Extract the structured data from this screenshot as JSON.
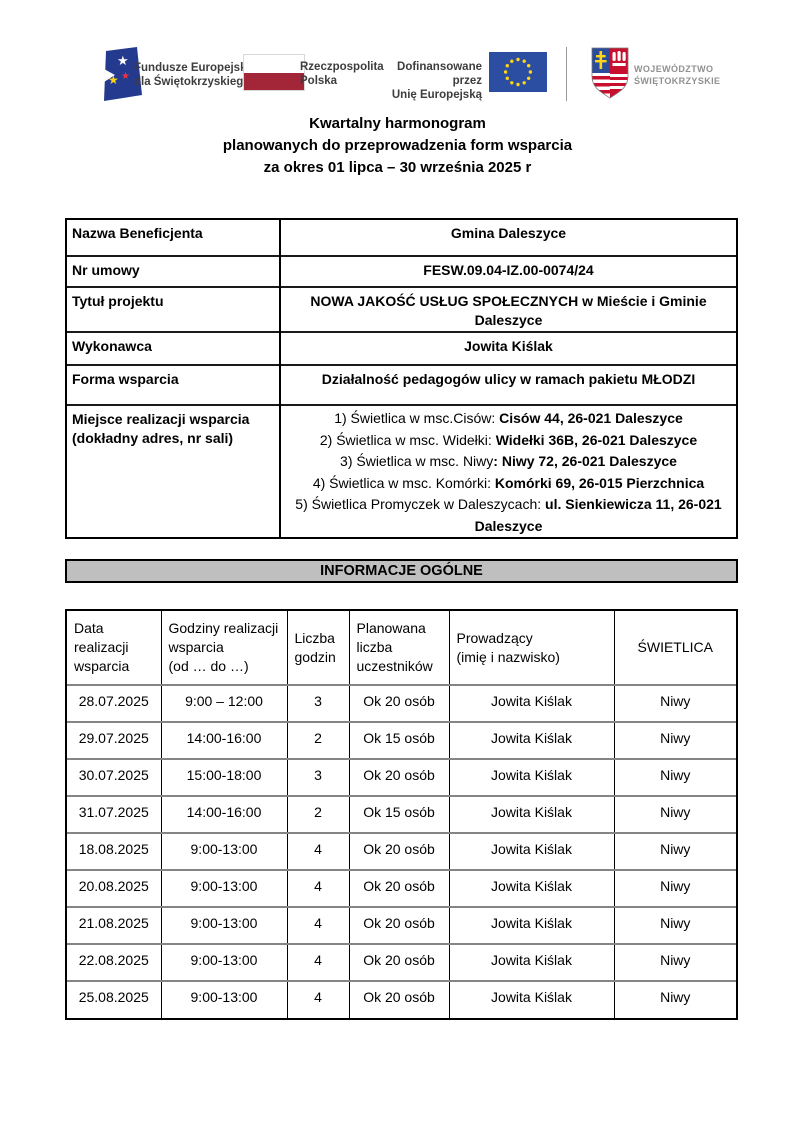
{
  "header": {
    "fe_logo": {
      "line1": "Fundusze Europejskie",
      "line2": "dla Świętokrzyskiego"
    },
    "pl_logo": {
      "line1": "Rzeczpospolita",
      "line2": "Polska"
    },
    "eu_logo": {
      "line1": "Dofinansowane przez",
      "line2": "Unię Europejską"
    },
    "woj_logo": {
      "line1": "WOJEWÓDZTWO",
      "line2": "ŚWIĘTOKRZYSKIE"
    }
  },
  "title": {
    "line1": "Kwartalny harmonogram",
    "line2": "planowanych do przeprowadzenia form wsparcia",
    "line3": "za okres 01 lipca – 30 września 2025 r"
  },
  "info": {
    "beneficjent_label": "Nazwa Beneficjenta",
    "beneficjent": "Gmina Daleszyce",
    "umowa_label": "Nr umowy",
    "umowa": "FESW.09.04-IZ.00-0074/24",
    "tytul_label": "Tytuł projektu",
    "tytul": "NOWA JAKOŚĆ USŁUG SPOŁECZNYCH w Mieście i Gminie Daleszyce",
    "wykonawca_label": "Wykonawca",
    "wykonawca": "Jowita Kiślak",
    "forma_label": "Forma wsparcia",
    "forma": "Działalność pedagogów ulicy w ramach pakietu MŁODZI",
    "miejsce_label": "Miejsce realizacji wsparcia (dokładny adres, nr sali)",
    "miejsca": [
      {
        "prefix": "1) Świetlica w msc.Cisów: ",
        "address": "Cisów 44, 26-021 Daleszyce"
      },
      {
        "prefix": "2) Świetlica w msc. Widełki: ",
        "address": "Widełki 36B, 26-021 Daleszyce"
      },
      {
        "prefix": "3) Świetlica w msc. Niwy",
        "address": ": Niwy 72, 26-021 Daleszyce"
      },
      {
        "prefix": "4) Świetlica w msc. Komórki: ",
        "address": "Komórki 69, 26-015 Pierzchnica"
      },
      {
        "prefix": "5) Świetlica Promyczek w Daleszycach: ",
        "address": "ul. Sienkiewicza 11, 26-021 Daleszyce"
      }
    ]
  },
  "section_header": "INFORMACJE OGÓLNE",
  "schedule_table": {
    "columns": [
      "Data\nrealizacji\nwsparcia",
      "Godziny realizacji\nwsparcia\n(od … do …)",
      "Liczba\ngodzin",
      "Planowana\nliczba\nuczestników",
      "Prowadzący\n(imię i nazwisko)",
      "ŚWIETLICA"
    ],
    "rows": [
      [
        "28.07.2025",
        "9:00 – 12:00",
        "3",
        "Ok 20 osób",
        "Jowita Kiślak",
        "Niwy"
      ],
      [
        "29.07.2025",
        "14:00-16:00",
        "2",
        "Ok 15 osób",
        "Jowita Kiślak",
        "Niwy"
      ],
      [
        "30.07.2025",
        "15:00-18:00",
        "3",
        "Ok 20 osób",
        "Jowita Kiślak",
        "Niwy"
      ],
      [
        "31.07.2025",
        "14:00-16:00",
        "2",
        "Ok 15 osób",
        "Jowita Kiślak",
        "Niwy"
      ],
      [
        "18.08.2025",
        "9:00-13:00",
        "4",
        "Ok 20 osób",
        "Jowita Kiślak",
        "Niwy"
      ],
      [
        "20.08.2025",
        "9:00-13:00",
        "4",
        "Ok 20 osób",
        "Jowita Kiślak",
        "Niwy"
      ],
      [
        "21.08.2025",
        "9:00-13:00",
        "4",
        "Ok 20 osób",
        "Jowita Kiślak",
        "Niwy"
      ],
      [
        "22.08.2025",
        "9:00-13:00",
        "4",
        "Ok 20 osób",
        "Jowita Kiślak",
        "Niwy"
      ],
      [
        "25.08.2025",
        "9:00-13:00",
        "4",
        "Ok 20 osób",
        "Jowita Kiślak",
        "Niwy"
      ]
    ]
  },
  "colors": {
    "flag_red": "#a32638",
    "eu_blue": "#2b4ea2",
    "fe_navy": "#243a8f",
    "star_yellow": "#ffd617",
    "bar_gray": "#bfbfbf",
    "row_separator_gray": "#858585",
    "crest_red": "#c8102e",
    "crest_blue": "#2b4b9b"
  }
}
